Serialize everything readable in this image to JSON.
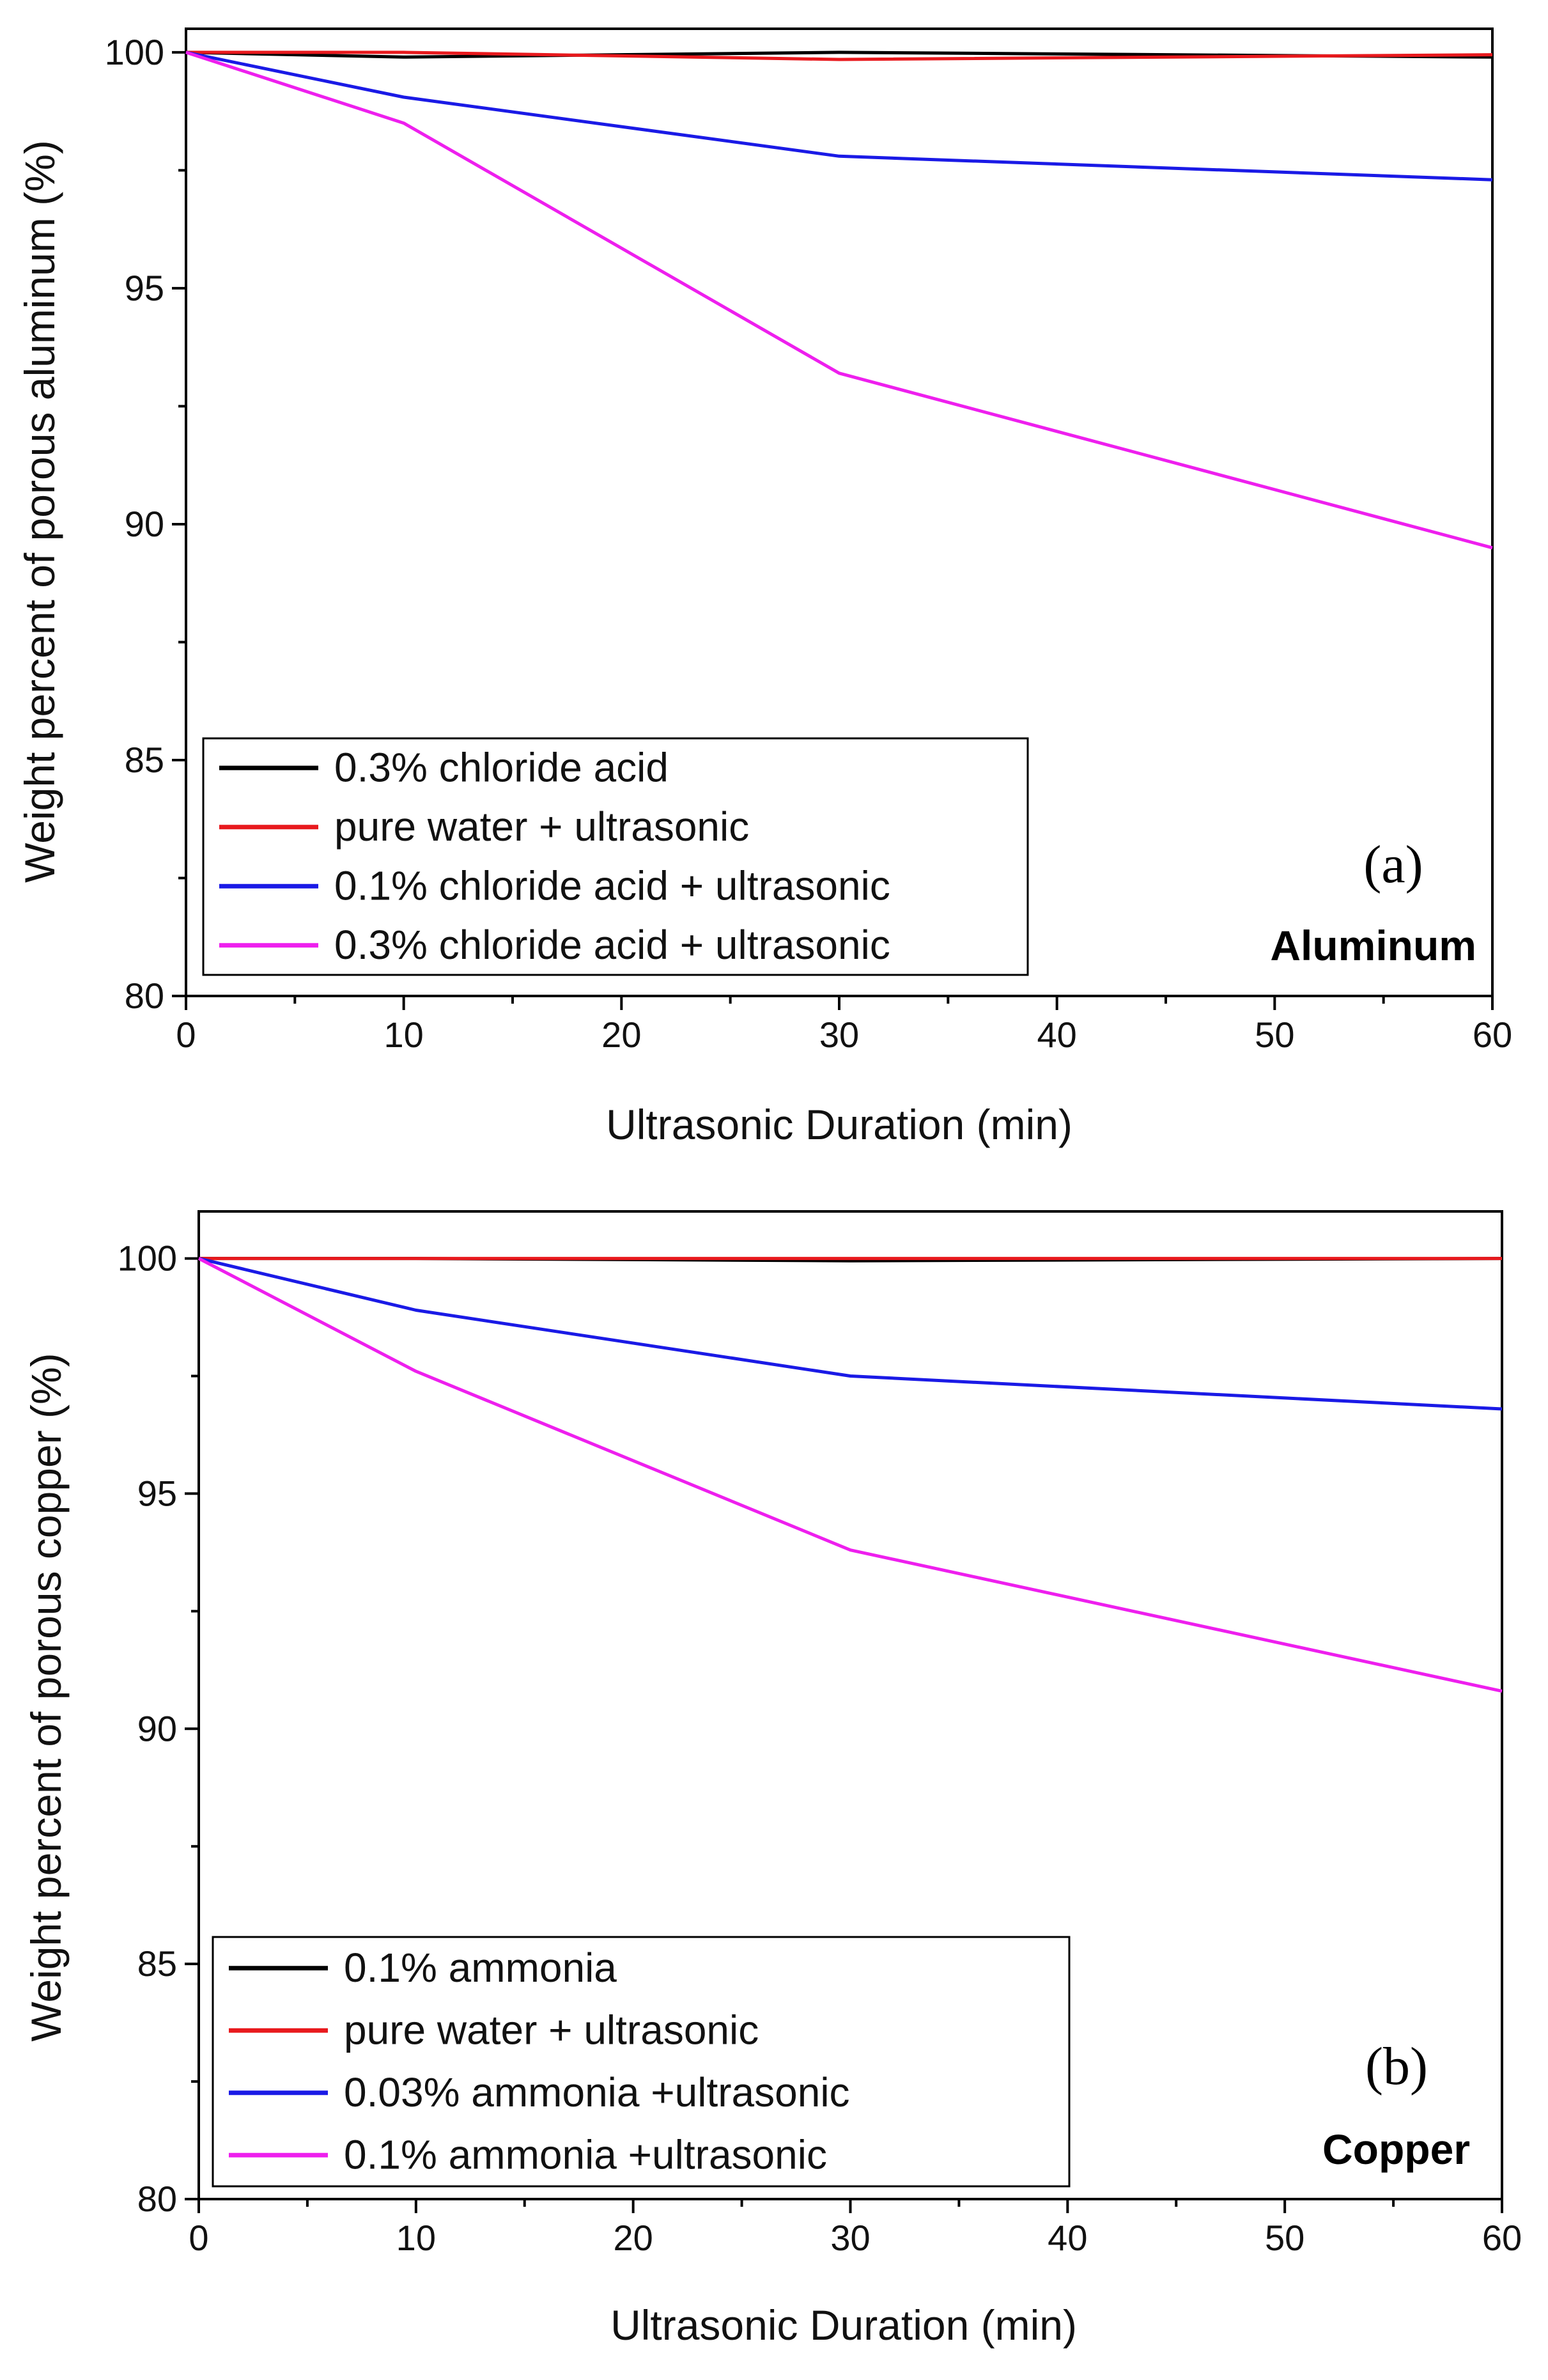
{
  "colors": {
    "black": "#000000",
    "red": "#e8191d",
    "blue": "#1a1ae6",
    "magenta": "#ee1fee",
    "axis": "#000000"
  },
  "chart_data": [
    {
      "type": "line",
      "title": "",
      "panel_label": "(a)",
      "material_label": "Aluminum",
      "xlabel": "Ultrasonic Duration (min)",
      "ylabel": "Weight percent of porous aluminum (%)",
      "xlim": [
        0,
        60
      ],
      "ylim": [
        80,
        100.5
      ],
      "xticks": [
        0,
        10,
        20,
        30,
        40,
        50,
        60
      ],
      "yticks": [
        80,
        85,
        90,
        95,
        100
      ],
      "x": [
        0,
        10,
        30,
        60
      ],
      "legend_position": "bottom-left",
      "series": [
        {
          "name": "0.3% chloride acid",
          "color": "#000000",
          "values": [
            100,
            99.9,
            100,
            99.9
          ]
        },
        {
          "name": "pure water + ultrasonic",
          "color": "#e8191d",
          "values": [
            100,
            100,
            99.85,
            99.95
          ]
        },
        {
          "name": "0.1% chloride acid + ultrasonic",
          "color": "#1a1ae6",
          "values": [
            100,
            99.05,
            97.8,
            97.3
          ]
        },
        {
          "name": "0.3% chloride acid + ultrasonic",
          "color": "#ee1fee",
          "values": [
            100,
            98.5,
            93.2,
            89.5
          ]
        }
      ]
    },
    {
      "type": "line",
      "title": "",
      "panel_label": "(b)",
      "material_label": "Copper",
      "xlabel": "Ultrasonic Duration (min)",
      "ylabel": "Weight percent of porous copper (%)",
      "xlim": [
        0,
        60
      ],
      "ylim": [
        80,
        101
      ],
      "xticks": [
        0,
        10,
        20,
        30,
        40,
        50,
        60
      ],
      "yticks": [
        80,
        85,
        90,
        95,
        100
      ],
      "x": [
        0,
        10,
        30,
        60
      ],
      "legend_position": "bottom-left",
      "series": [
        {
          "name": "0.1% ammonia",
          "color": "#000000",
          "values": [
            100,
            100,
            99.95,
            100
          ]
        },
        {
          "name": "pure water + ultrasonic",
          "color": "#e8191d",
          "values": [
            100,
            100,
            100,
            100
          ]
        },
        {
          "name": "0.03% ammonia +ultrasonic",
          "color": "#1a1ae6",
          "values": [
            100,
            98.9,
            97.5,
            96.8
          ]
        },
        {
          "name": "0.1% ammonia +ultrasonic",
          "color": "#ee1fee",
          "values": [
            100,
            97.6,
            93.8,
            90.8
          ]
        }
      ]
    }
  ]
}
